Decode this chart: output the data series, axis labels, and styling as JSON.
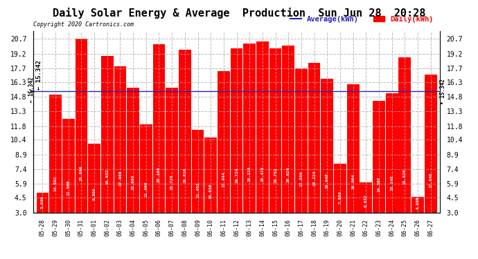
{
  "title": "Daily Solar Energy & Average  Production  Sun Jun 28  20:28",
  "copyright": "Copyright 2020 Cartronics.com",
  "legend_avg": "Average(kWh)",
  "legend_daily": "Daily(kWh)",
  "average": 15.342,
  "categories": [
    "05-28",
    "05-29",
    "05-30",
    "05-31",
    "06-01",
    "06-02",
    "06-03",
    "06-04",
    "06-05",
    "06-06",
    "06-07",
    "06-08",
    "06-09",
    "06-10",
    "06-11",
    "06-12",
    "06-13",
    "06-14",
    "06-15",
    "06-16",
    "06-17",
    "06-18",
    "06-19",
    "06-20",
    "06-21",
    "06-22",
    "06-23",
    "06-24",
    "06-25",
    "06-26",
    "06-27"
  ],
  "values": [
    5.04,
    14.992,
    12.568,
    20.696,
    9.996,
    18.932,
    17.908,
    15.688,
    11.96,
    20.16,
    15.728,
    19.616,
    11.452,
    10.636,
    17.444,
    19.724,
    20.228,
    20.476,
    19.752,
    20.024,
    17.696,
    18.224,
    16.648,
    7.964,
    16.064,
    6.032,
    14.388,
    15.148,
    18.82,
    4.608,
    17.048
  ],
  "bar_color": "#ff0000",
  "avg_line_color": "#2222bb",
  "background_color": "#ffffff",
  "grid_color": "#aaaaaa",
  "title_color": "#000000",
  "title_fontsize": 11,
  "yticks": [
    3.0,
    4.5,
    5.9,
    7.4,
    8.9,
    10.4,
    11.8,
    13.3,
    14.8,
    16.3,
    17.7,
    19.2,
    20.7
  ],
  "ylim": [
    3.0,
    21.5
  ]
}
